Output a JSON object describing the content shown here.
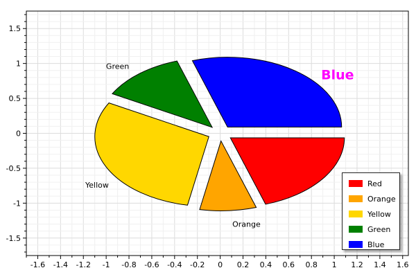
{
  "chart_data": {
    "type": "pie",
    "title": "",
    "xlabel": "",
    "ylabel": "",
    "xlim": [
      -1.7,
      1.65
    ],
    "ylim": [
      -1.75,
      1.75
    ],
    "x_ticks": [
      "-1.6",
      "-1.4",
      "-1.2",
      "-1",
      "-0.8",
      "-0.6",
      "-0.4",
      "-0.2",
      "0",
      "0.2",
      "0.4",
      "0.6",
      "0.8",
      "1",
      "1.2",
      "1.4",
      "1.6"
    ],
    "y_ticks": [
      "1.5",
      "1",
      "0.5",
      "0",
      "-0.5",
      "-1",
      "-1.5"
    ],
    "grid": true,
    "legend_position": "bottom-right",
    "slices": [
      {
        "name": "Red",
        "value": 20,
        "color": "#FF0000",
        "label": "Red"
      },
      {
        "name": "Orange",
        "value": 8,
        "color": "#FFA500",
        "label": "Orange"
      },
      {
        "name": "Yellow",
        "value": 30,
        "color": "#FFD700",
        "label": "Yellow"
      },
      {
        "name": "Green",
        "value": 12,
        "color": "#008000",
        "label": "Green"
      },
      {
        "name": "Blue",
        "value": 30,
        "color": "#0000FF",
        "label": "Blue",
        "highlight_color": "#FF00FF"
      }
    ]
  }
}
